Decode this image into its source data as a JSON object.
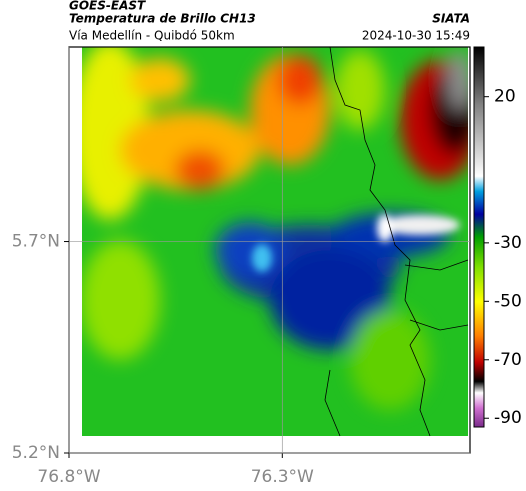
{
  "header": {
    "source": "GOES-EAST",
    "title": "Temperatura de Brillo CH13",
    "subtitle": "Vía Medellín - Quibdó 50km",
    "brand": "SIATA",
    "timestamp": "2024-10-30 15:49"
  },
  "map": {
    "xlim": [
      -76.8,
      -75.86
    ],
    "ylim": [
      5.2,
      6.16
    ],
    "xticks": [
      {
        "value": -76.8,
        "label": "76.8°W"
      },
      {
        "value": -76.3,
        "label": "76.3°W"
      }
    ],
    "yticks": [
      {
        "value": 5.2,
        "label": "5.2°N"
      },
      {
        "value": 5.7,
        "label": "5.7°N"
      }
    ],
    "grid": true
  },
  "colorbar": {
    "lim": [
      -93,
      37
    ],
    "ticks": [
      20,
      -30,
      -50,
      -70,
      -90
    ]
  }
}
